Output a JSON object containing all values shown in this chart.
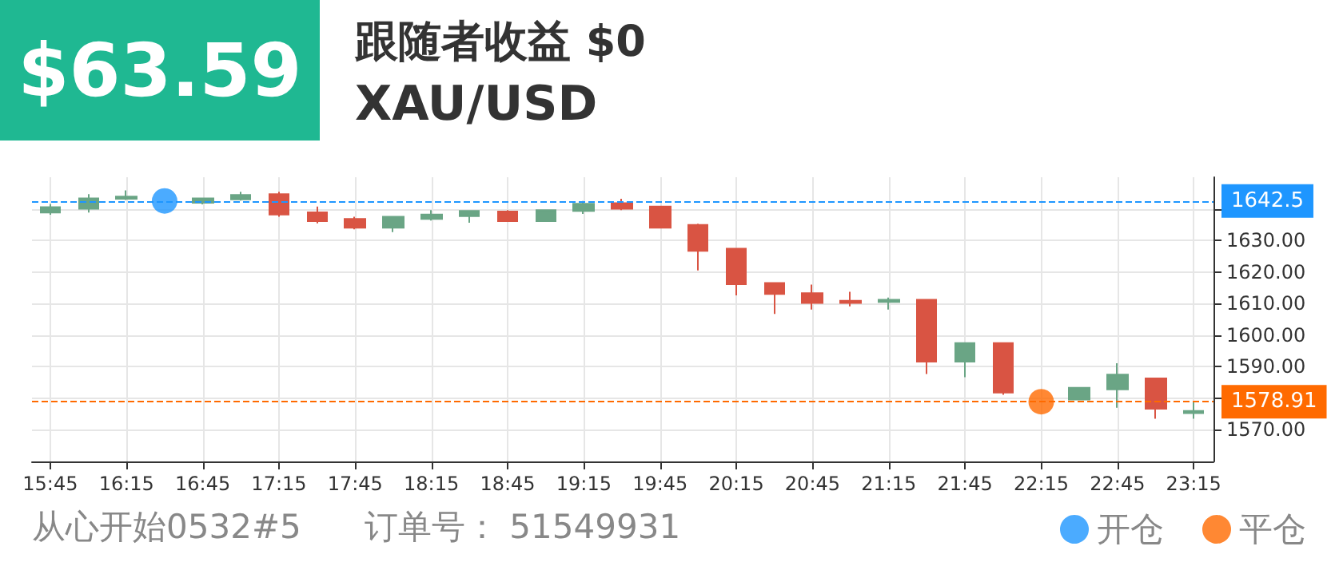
{
  "chart_data": {
    "type": "candlestick",
    "title": "XAU/USD",
    "subtitle": "跟随者收益 $0",
    "annotations": [
      "$63.59",
      "从心开始0532#5",
      "订单号： 51549931"
    ],
    "x": [
      15.75,
      16,
      16.25,
      16.75,
      17,
      17.25,
      17.5,
      17.75,
      18,
      18.25,
      18.5,
      18.75,
      19,
      19.25,
      19.5,
      19.75,
      20,
      20.25,
      20.5,
      20.75,
      21,
      21.25,
      21.5,
      21.75,
      22,
      22.5,
      22.75,
      23,
      23.25
    ],
    "ohlc": [
      [
        1638.8,
        1641.5,
        1638.1,
        1640.5
      ],
      [
        1640.0,
        1644.6,
        1638.8,
        1643.3
      ],
      [
        1643.2,
        1645.8,
        1642.8,
        1643.9
      ],
      [
        1641.9,
        1643.3,
        1641.4,
        1643.3
      ],
      [
        1643.0,
        1645.4,
        1642.6,
        1644.4
      ],
      [
        1644.6,
        1645.4,
        1637.5,
        1638.2
      ],
      [
        1638.9,
        1640.7,
        1635.4,
        1636.1
      ],
      [
        1636.8,
        1637.5,
        1633.5,
        1634.0
      ],
      [
        1634.0,
        1637.5,
        1632.6,
        1637.5
      ],
      [
        1636.8,
        1639.6,
        1636.3,
        1638.2
      ],
      [
        1637.7,
        1639.3,
        1635.6,
        1639.3
      ],
      [
        1639.1,
        1639.6,
        1636.1,
        1636.1
      ],
      [
        1636.1,
        1639.6,
        1636.1,
        1639.6
      ],
      [
        1639.3,
        1642.5,
        1638.4,
        1641.6
      ],
      [
        1641.8,
        1643.2,
        1639.6,
        1640.0
      ],
      [
        1640.7,
        1640.7,
        1634.0,
        1634.0
      ],
      [
        1634.9,
        1635.3,
        1620.5,
        1626.7
      ],
      [
        1627.4,
        1627.4,
        1612.6,
        1616.1
      ],
      [
        1616.5,
        1616.5,
        1606.7,
        1613.0
      ],
      [
        1613.3,
        1616.0,
        1608.1,
        1610.2
      ],
      [
        1610.9,
        1613.7,
        1609.1,
        1610.2
      ],
      [
        1610.5,
        1611.9,
        1608.1,
        1611.2
      ],
      [
        1611.2,
        1611.2,
        1587.7,
        1591.6
      ],
      [
        1591.6,
        1597.5,
        1586.7,
        1597.5
      ],
      [
        1597.5,
        1597.5,
        1581.1,
        1581.8
      ],
      [
        1579.6,
        1583.3,
        1579.6,
        1583.3
      ],
      [
        1582.8,
        1591.1,
        1577.0,
        1587.5
      ],
      [
        1586.3,
        1586.3,
        1573.5,
        1576.7
      ],
      [
        1575.3,
        1578.8,
        1573.5,
        1576.0
      ]
    ],
    "colors": [
      "#6aa585",
      "#6aa585",
      "#6aa585",
      "#6aa585",
      "#6aa585",
      "#d95443",
      "#d95443",
      "#d95443",
      "#6aa585",
      "#6aa585",
      "#6aa585",
      "#d95443",
      "#6aa585",
      "#6aa585",
      "#d95443",
      "#d95443",
      "#d95443",
      "#d95443",
      "#d95443",
      "#d95443",
      "#d95443",
      "#6aa585",
      "#d95443",
      "#6aa585",
      "#d95443",
      "#6aa585",
      "#6aa585",
      "#d95443",
      "#6aa585"
    ],
    "series": [
      {
        "name": "开仓",
        "type": "scatter",
        "color": "#1e96ff",
        "x": [
          16.5
        ],
        "values": [
          1642.5
        ]
      },
      {
        "name": "平仓",
        "type": "scatter",
        "color": "#ff6a00",
        "x": [
          22.25
        ],
        "values": [
          1578.91
        ]
      }
    ],
    "marker": "circle",
    "ref_lines": [
      {
        "axis": "y",
        "value": 1642.5,
        "label": "1642.5",
        "color": "#1e96ff",
        "line_style": "dashed"
      },
      {
        "axis": "y",
        "value": 1578.91,
        "label": "1578.91",
        "color": "#ff6a00",
        "line_style": "dashed"
      }
    ],
    "xlim": [
      15.63,
      23.38
    ],
    "xticks": [
      {
        "value": 15.75,
        "label": "15:45"
      },
      {
        "value": 16.25,
        "label": "16:15"
      },
      {
        "value": 16.75,
        "label": "16:45"
      },
      {
        "value": 17.25,
        "label": "17:15"
      },
      {
        "value": 17.75,
        "label": "17:45"
      },
      {
        "value": 18.25,
        "label": "18:15"
      },
      {
        "value": 18.75,
        "label": "18:45"
      },
      {
        "value": 19.25,
        "label": "19:15"
      },
      {
        "value": 19.75,
        "label": "19:45"
      },
      {
        "value": 20.25,
        "label": "20:15"
      },
      {
        "value": 20.75,
        "label": "20:45"
      },
      {
        "value": 21.25,
        "label": "21:15"
      },
      {
        "value": 21.75,
        "label": "21:45"
      },
      {
        "value": 22.25,
        "label": "22:15"
      },
      {
        "value": 22.75,
        "label": "22:45"
      },
      {
        "value": 23.25,
        "label": "23:15"
      }
    ],
    "ylim": [
      1560,
      1650
    ],
    "yticks": [
      {
        "value": 1570,
        "label": "1570.00"
      },
      {
        "value": 1580,
        "label": null
      },
      {
        "value": 1590,
        "label": "1590.00"
      },
      {
        "value": 1600,
        "label": "1600.00"
      },
      {
        "value": 1610,
        "label": "1610.00"
      },
      {
        "value": 1620,
        "label": "1620.00"
      },
      {
        "value": 1630,
        "label": "1630.00"
      },
      {
        "value": 1640,
        "label": null
      }
    ],
    "grid": true,
    "legend": "bottom right"
  }
}
